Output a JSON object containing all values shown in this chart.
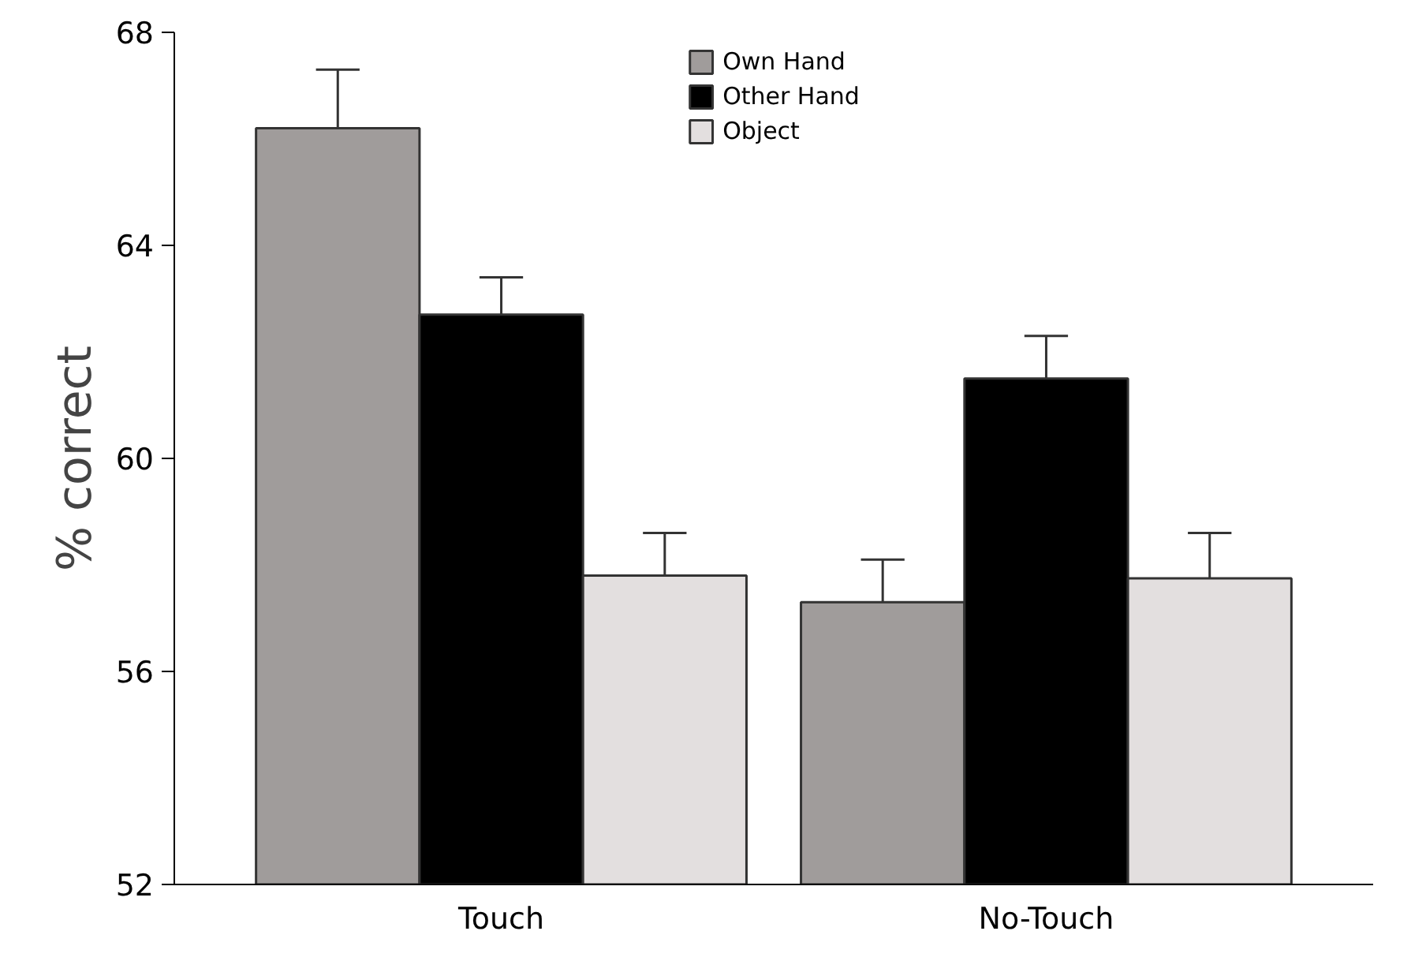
{
  "chart_data": {
    "type": "bar",
    "ylabel": "% correct",
    "categories": [
      "Touch",
      "No-Touch"
    ],
    "series": [
      {
        "name": "Own Hand",
        "color": "#a09c9b",
        "values": [
          66.2,
          57.3
        ],
        "errors": [
          [
            66.2,
            67.3
          ],
          [
            57.3,
            58.1
          ]
        ]
      },
      {
        "name": "Other Hand",
        "color": "#000000",
        "values": [
          62.7,
          61.5
        ],
        "errors": [
          [
            62.7,
            63.4
          ],
          [
            61.5,
            62.3
          ]
        ]
      },
      {
        "name": "Object",
        "color": "#e3dfdf",
        "values": [
          57.8,
          57.75
        ],
        "errors": [
          [
            57.8,
            58.6
          ],
          [
            57.75,
            58.6
          ]
        ]
      }
    ],
    "ylim": [
      52,
      68
    ],
    "yticks": [
      52,
      56,
      60,
      64,
      68
    ],
    "grid": false,
    "legend": "top"
  }
}
